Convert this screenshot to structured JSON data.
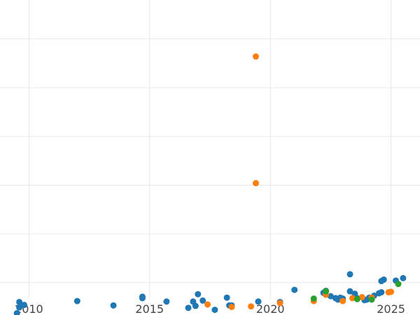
{
  "chart_data": {
    "type": "scatter",
    "title": "",
    "xlabel": "",
    "ylabel": "",
    "xlim": [
      2008.8,
      2026.2
    ],
    "ylim": [
      -0.35,
      5.8
    ],
    "x_ticks": [
      2010,
      2015,
      2020,
      2025
    ],
    "x_tick_labels": [
      "2010",
      "2015",
      "2020",
      "2025"
    ],
    "y_gridlines": [
      0,
      1,
      2,
      3,
      4,
      5,
      6
    ],
    "y_tick_labels_visible": false,
    "grid": true,
    "colors": [
      "#1f77b4",
      "#ff7f0e",
      "#2ca02c"
    ],
    "series": [
      {
        "color": "#1f77b4",
        "points": [
          [
            2009.5,
            -0.63
          ],
          [
            2009.6,
            -0.51
          ],
          [
            2009.6,
            -0.4
          ],
          [
            2009.8,
            -0.46
          ],
          [
            2012.0,
            -0.38
          ],
          [
            2013.5,
            -0.47
          ],
          [
            2014.7,
            -0.29
          ],
          [
            2014.7,
            -0.32
          ],
          [
            2015.7,
            -0.39
          ],
          [
            2016.6,
            -0.52
          ],
          [
            2016.8,
            -0.39
          ],
          [
            2016.9,
            -0.48
          ],
          [
            2017.0,
            -0.24
          ],
          [
            2017.2,
            -0.37
          ],
          [
            2017.7,
            -0.56
          ],
          [
            2018.2,
            -0.31
          ],
          [
            2018.3,
            -0.47
          ],
          [
            2018.4,
            -0.47
          ],
          [
            2019.5,
            -0.39
          ],
          [
            2020.4,
            -0.4
          ],
          [
            2021.0,
            -0.15
          ],
          [
            2022.2,
            -0.21
          ],
          [
            2022.3,
            -0.17
          ],
          [
            2022.5,
            -0.28
          ],
          [
            2022.7,
            -0.32
          ],
          [
            2022.8,
            -0.35
          ],
          [
            2022.9,
            -0.31
          ],
          [
            2023.0,
            -0.33
          ],
          [
            2023.3,
            -0.18
          ],
          [
            2023.3,
            0.17
          ],
          [
            2023.5,
            -0.23
          ],
          [
            2023.6,
            -0.32
          ],
          [
            2023.9,
            -0.36
          ],
          [
            2024.0,
            -0.35
          ],
          [
            2024.1,
            -0.31
          ],
          [
            2024.3,
            -0.27
          ],
          [
            2024.5,
            -0.22
          ],
          [
            2024.6,
            -0.2
          ],
          [
            2024.6,
            0.03
          ],
          [
            2024.7,
            0.06
          ],
          [
            2025.2,
            0.04
          ],
          [
            2025.5,
            0.09
          ]
        ]
      },
      {
        "color": "#ff7f0e",
        "points": [
          [
            2017.4,
            -0.45
          ],
          [
            2018.4,
            -0.5
          ],
          [
            2019.2,
            -0.49
          ],
          [
            2019.4,
            4.64
          ],
          [
            2019.4,
            2.04
          ],
          [
            2020.4,
            -0.42
          ],
          [
            2021.8,
            -0.38
          ],
          [
            2022.3,
            -0.25
          ],
          [
            2023.0,
            -0.38
          ],
          [
            2023.4,
            -0.32
          ],
          [
            2023.8,
            -0.3
          ],
          [
            2024.2,
            -0.31
          ],
          [
            2024.9,
            -0.2
          ],
          [
            2025.0,
            -0.19
          ]
        ]
      },
      {
        "color": "#2ca02c",
        "points": [
          [
            2021.8,
            -0.33
          ],
          [
            2022.3,
            -0.18
          ],
          [
            2023.6,
            -0.34
          ],
          [
            2024.2,
            -0.35
          ],
          [
            2025.3,
            -0.03
          ]
        ]
      }
    ]
  }
}
